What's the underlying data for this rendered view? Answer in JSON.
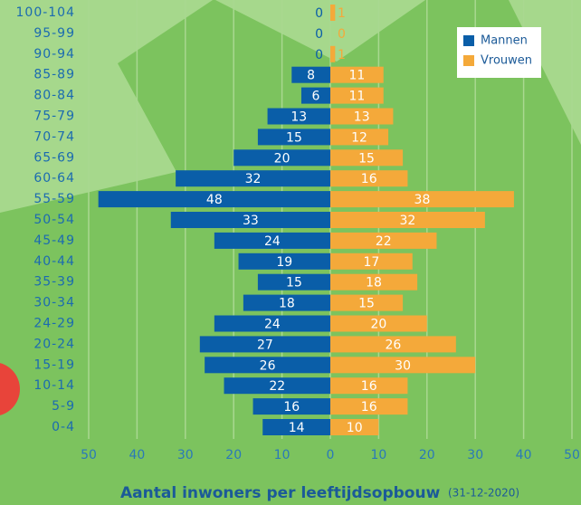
{
  "chart_data": {
    "type": "population-pyramid",
    "title": "Aantal inwoners per leeftijdsopbouw",
    "subtitle": "(31-12-2020)",
    "categories": [
      "100-104",
      "95-99",
      "90-94",
      "85-89",
      "80-84",
      "75-79",
      "70-74",
      "65-69",
      "60-64",
      "55-59",
      "50-54",
      "45-49",
      "40-44",
      "35-39",
      "30-34",
      "24-29",
      "20-24",
      "15-19",
      "10-14",
      "5-9",
      "0-4"
    ],
    "series": [
      {
        "name": "Mannen",
        "color": "#0a5ea8",
        "values": [
          0,
          0,
          0,
          8,
          6,
          13,
          15,
          20,
          32,
          48,
          33,
          24,
          19,
          15,
          18,
          24,
          27,
          26,
          22,
          16,
          14
        ]
      },
      {
        "name": "Vrouwen",
        "color": "#f4a93a",
        "values": [
          1,
          0,
          1,
          11,
          11,
          13,
          12,
          15,
          16,
          38,
          32,
          22,
          17,
          18,
          15,
          20,
          26,
          30,
          16,
          16,
          10
        ]
      }
    ],
    "xlim": [
      -50,
      50
    ],
    "xticks": [
      {
        "value": -50,
        "label": "50"
      },
      {
        "value": -40,
        "label": "40"
      },
      {
        "value": -30,
        "label": "30"
      },
      {
        "value": -20,
        "label": "20"
      },
      {
        "value": -10,
        "label": "10"
      },
      0,
      10,
      20,
      30,
      40,
      50
    ],
    "grid": true,
    "legend": "upper right"
  }
}
